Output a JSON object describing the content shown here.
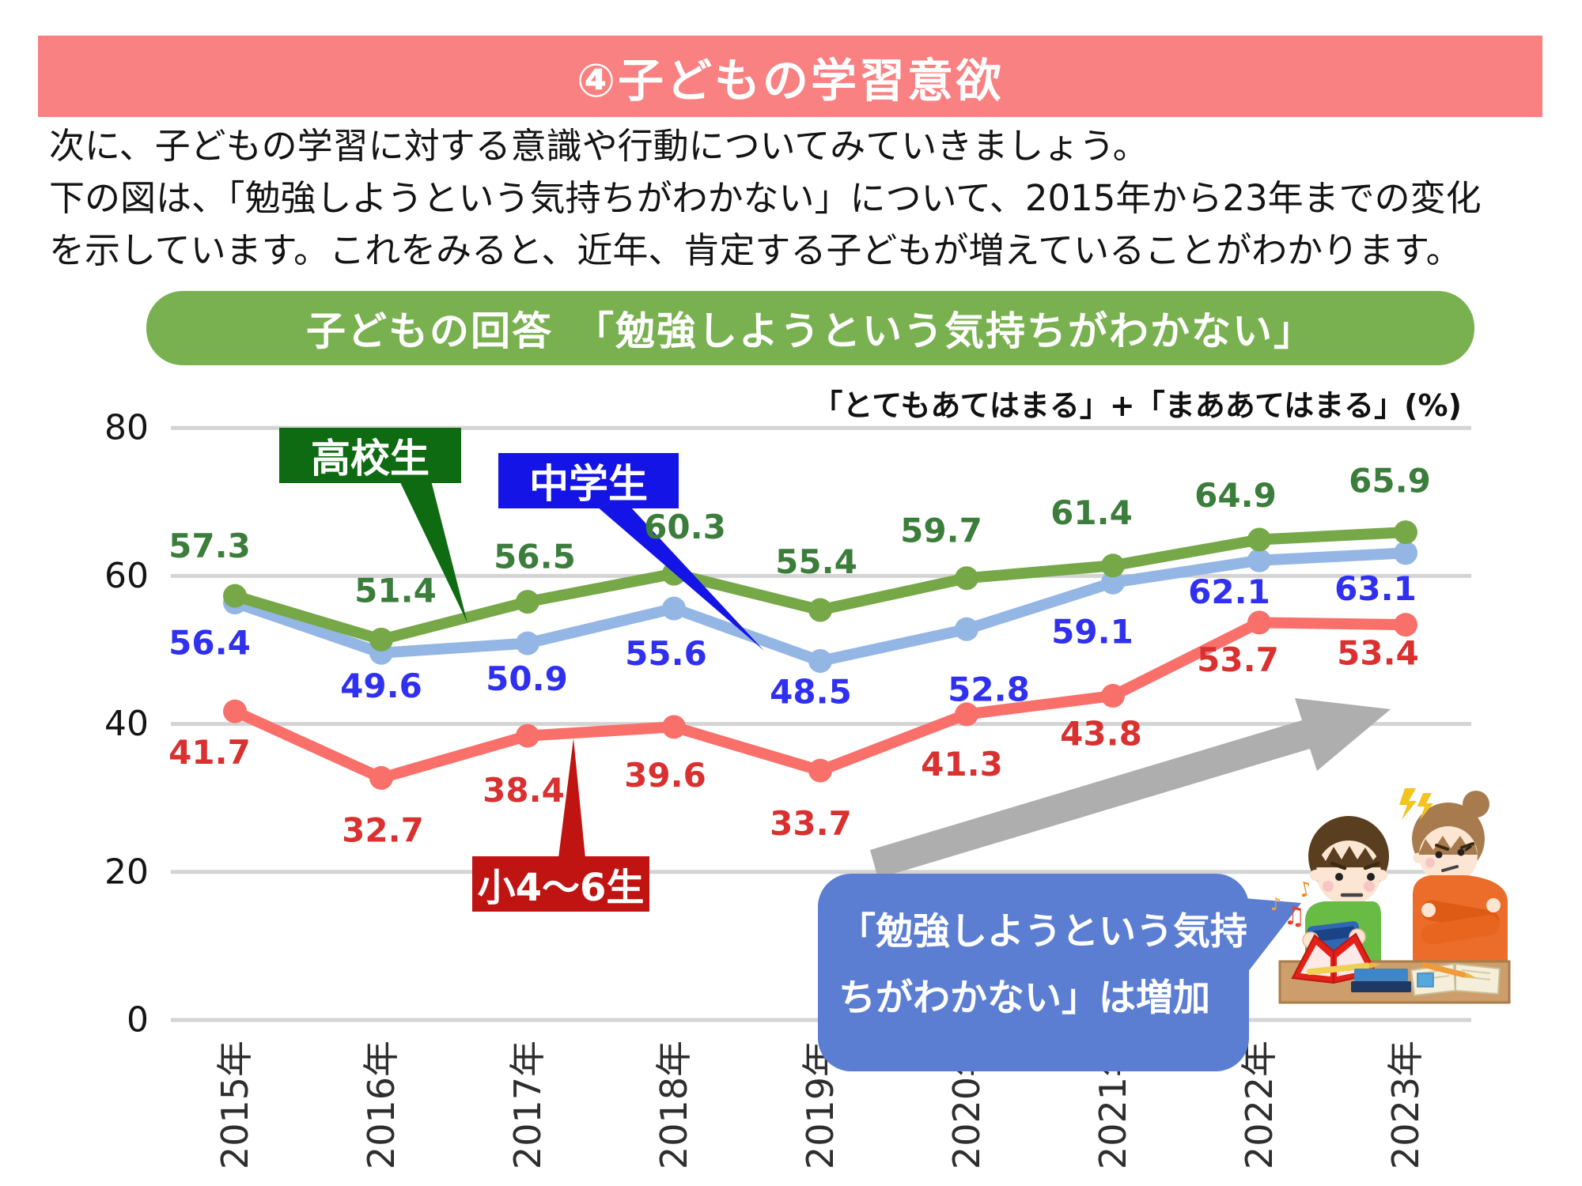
{
  "header": {
    "title": "④子どもの学習意欲",
    "bg_color": "#FA8181",
    "text_color": "#FFFFFF"
  },
  "intro": {
    "lines": [
      "次に、子どもの学習に対する意識や行動についてみていきましょう。",
      "下の図は、「勉強しようという気持ちがわかない」について、2015年から23年までの変化",
      "を示しています。これをみると、近年、肯定する子どもが増えていることがわかります。"
    ]
  },
  "banner": {
    "label": "子どもの回答　「勉強しようという気持ちがわかない」",
    "bg_color": "#79B150",
    "text_color": "#FFFFFF"
  },
  "note": {
    "text": "「とてもあてはまる」+「まああてはまる」(%)"
  },
  "chart_data": {
    "type": "line",
    "title": "子どもの回答　「勉強しようという気持ちがわかない」",
    "unit": "%",
    "categories": [
      "2015年",
      "2016年",
      "2017年",
      "2018年",
      "2019年",
      "2020年",
      "2021年",
      "2022年",
      "2023年"
    ],
    "series": [
      {
        "name": "中学生",
        "color": "#94B6E4",
        "label_color": "#3030F0",
        "values": [
          56.4,
          49.6,
          50.9,
          55.6,
          48.5,
          52.8,
          59.1,
          62.1,
          63.1
        ],
        "label_dx": [
          -32,
          0,
          -1,
          -10,
          -12,
          28,
          -26,
          -38,
          -38
        ],
        "label_dy": [
          51,
          42,
          45,
          57,
          39,
          76,
          62,
          40,
          45
        ]
      },
      {
        "name": "高校生",
        "color": "#76A848",
        "label_color": "#3B7D3B",
        "values": [
          57.3,
          51.4,
          56.5,
          60.3,
          55.4,
          59.7,
          61.4,
          64.9,
          65.9
        ],
        "label_dx": [
          -32,
          18,
          9,
          14,
          -5,
          -32,
          -27,
          -30,
          -20
        ],
        "label_dy": [
          -63,
          -62,
          -57,
          -59,
          -61,
          -60,
          -67,
          -56,
          -65
        ]
      },
      {
        "name": "小4～6生",
        "color": "#F9706A",
        "label_color": "#D93030",
        "values": [
          41.7,
          32.7,
          38.4,
          39.6,
          33.7,
          41.3,
          43.8,
          53.7,
          53.4
        ],
        "label_dx": [
          -32,
          2,
          -5,
          -11,
          -12,
          -6,
          -15,
          -27,
          -35
        ],
        "label_dy": [
          52,
          66,
          69,
          61,
          67,
          63,
          48,
          47,
          36
        ]
      }
    ],
    "ylim": [
      0,
      80
    ],
    "yticks": [
      0,
      20,
      40,
      60,
      80
    ],
    "grid": true,
    "legend_position": "callout-boxes-on-plot",
    "x_label_rotation": -90
  },
  "callouts": {
    "highschool": {
      "label": "高校生",
      "bg_color": "#0E6B12"
    },
    "middleschool": {
      "label": "中学生",
      "bg_color": "#1414E6"
    },
    "elementary": {
      "label": "小4～6生",
      "bg_color": "#BF1411"
    }
  },
  "bubble": {
    "line1": "「勉強しようという気持",
    "line2": "ちがわかない」は増加",
    "bg_color": "#5B7ED3",
    "text_color": "#FFFFFF"
  },
  "arrow": {
    "color": "#AEAEAE",
    "meaning": "increase-trend"
  },
  "illustration": {
    "subject": "boy-playing-game-while-mother-watches-angrily",
    "colors": {
      "boy_shirt": "#68BC45",
      "mother_sweater": "#EB6D29",
      "desk": "#CD9E6B",
      "hair_boy": "#5A3E20",
      "hair_mother": "#A87B4E",
      "skin": "#FCE5D2"
    }
  }
}
